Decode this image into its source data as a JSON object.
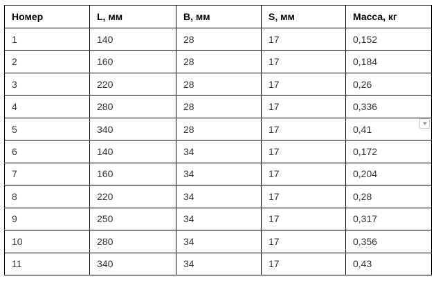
{
  "table": {
    "headers": [
      "Номер",
      "L, мм",
      "B, мм",
      "S, мм",
      "Масса, кг"
    ],
    "rows": [
      [
        "1",
        "140",
        "28",
        "17",
        "0,152"
      ],
      [
        "2",
        "160",
        "28",
        "17",
        "0,184"
      ],
      [
        "3",
        "220",
        "28",
        "17",
        "0,26"
      ],
      [
        "4",
        "280",
        "28",
        "17",
        "0,336"
      ],
      [
        "5",
        "340",
        "28",
        "17",
        "0,41"
      ],
      [
        "6",
        "140",
        "34",
        "17",
        "0,172"
      ],
      [
        "7",
        "160",
        "34",
        "17",
        "0,204"
      ],
      [
        "8",
        "220",
        "34",
        "17",
        "0,28"
      ],
      [
        "9",
        "250",
        "34",
        "17",
        "0,317"
      ],
      [
        "10",
        "280",
        "34",
        "17",
        "0,356"
      ],
      [
        "11",
        "340",
        "34",
        "17",
        "0,43"
      ]
    ],
    "border_color": "#000000",
    "header_text_color": "#000000",
    "cell_text_color": "#333333"
  },
  "overlay": {
    "dropdown_icon": "▼"
  }
}
